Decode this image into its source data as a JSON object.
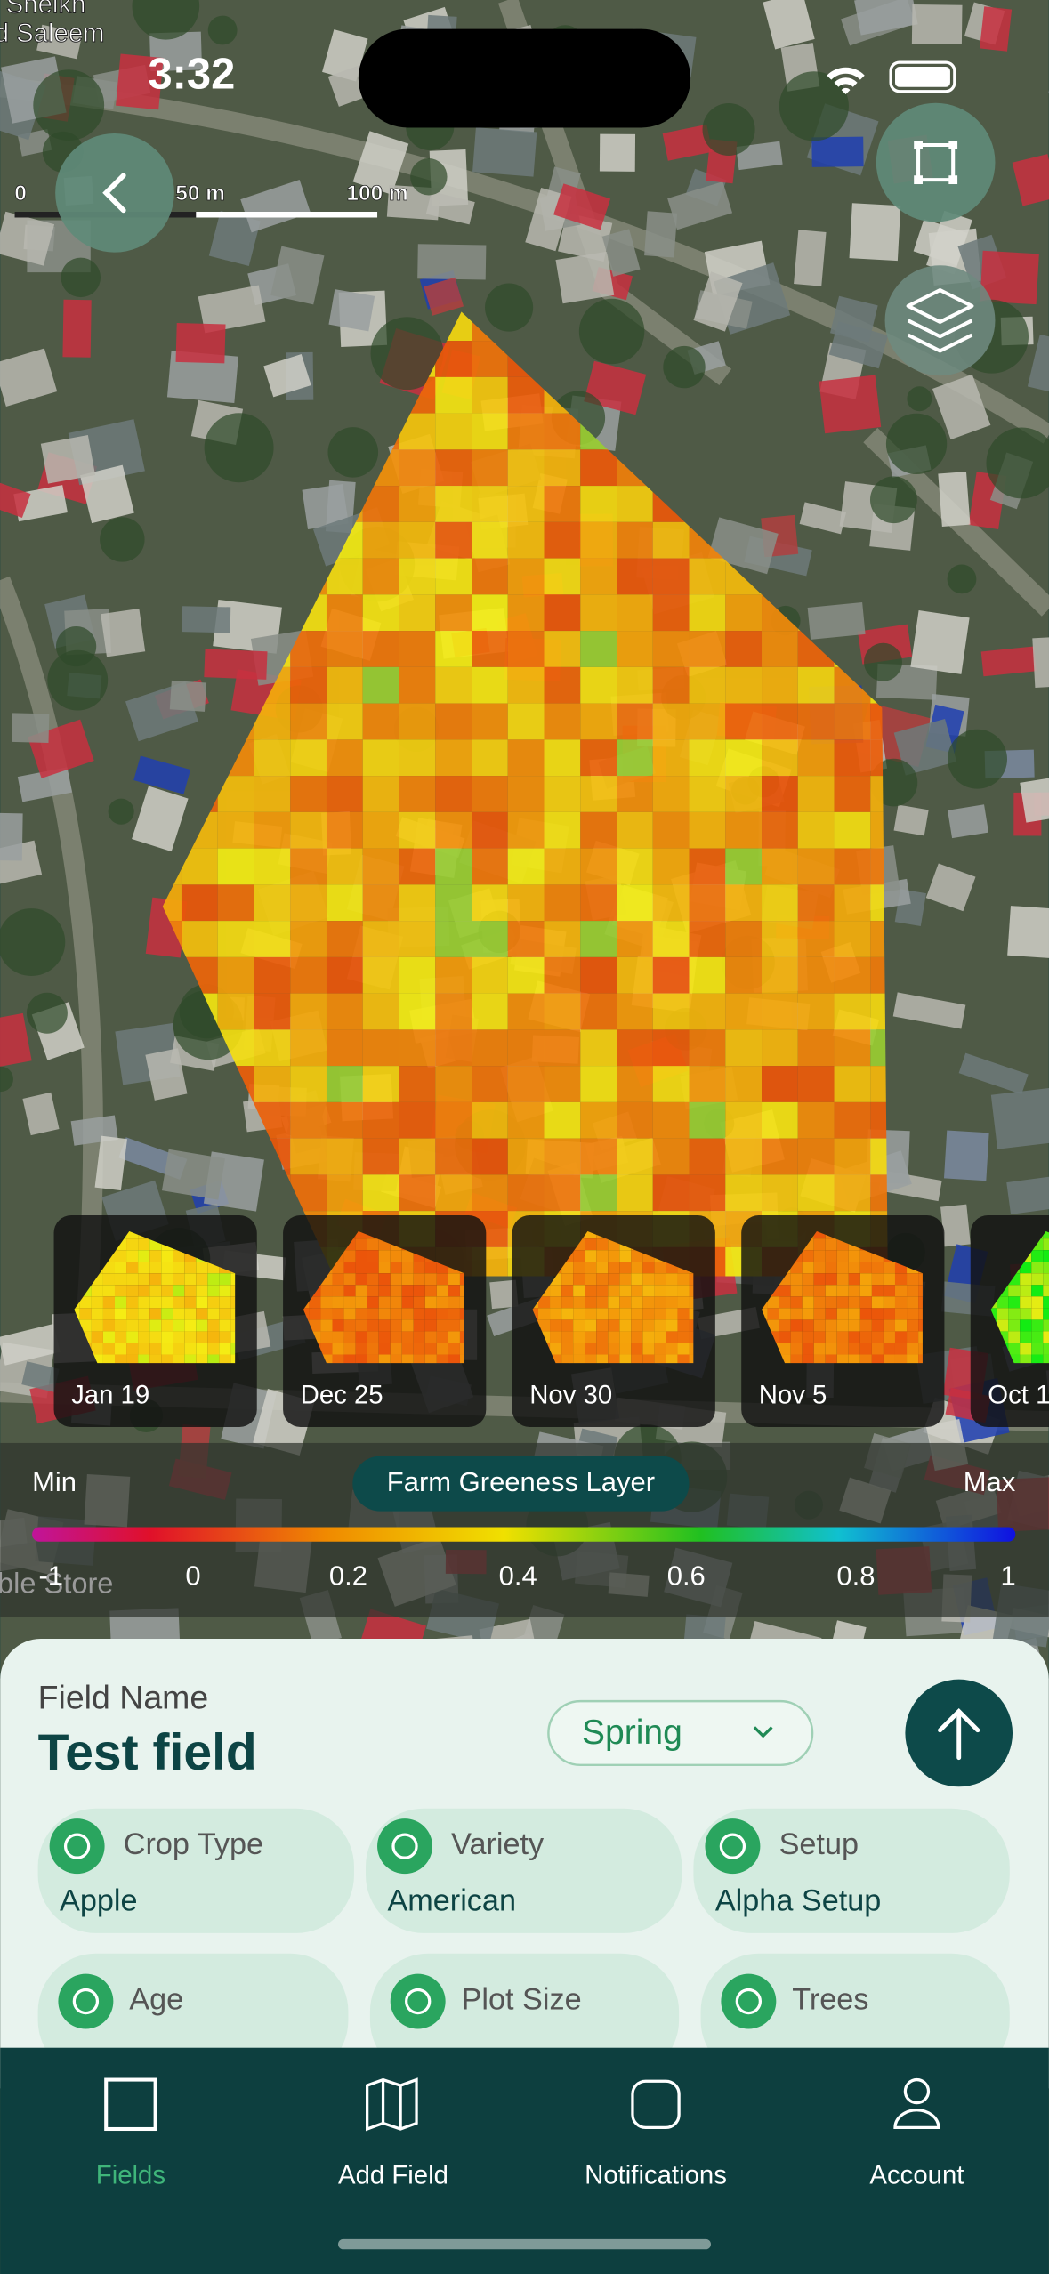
{
  "status": {
    "time": "3:32"
  },
  "map": {
    "labels": [
      "Sheikh",
      "d Saleem"
    ],
    "scale": [
      "0",
      "50 m",
      "100 m"
    ],
    "watermark": "ble Store"
  },
  "timeline": [
    "Jan 19",
    "Dec 25",
    "Nov 30",
    "Nov 5",
    "Oct 1"
  ],
  "legend": {
    "min": "Min",
    "title": "Farm Greeness Layer",
    "max": "Max",
    "ticks": [
      "-1",
      "0",
      "0.2",
      "0.4",
      "0.6",
      "0.8",
      "1"
    ]
  },
  "field": {
    "label": "Field Name",
    "name": "Test field",
    "season": "Spring",
    "attributes": [
      {
        "label": "Crop Type",
        "value": "Apple"
      },
      {
        "label": "Variety",
        "value": "American"
      },
      {
        "label": "Setup",
        "value": "Alpha Setup"
      },
      {
        "label": "Age"
      },
      {
        "label": "Plot Size"
      },
      {
        "label": "Trees"
      }
    ]
  },
  "nav": [
    "Fields",
    "Add Field",
    "Notifications",
    "Account"
  ]
}
